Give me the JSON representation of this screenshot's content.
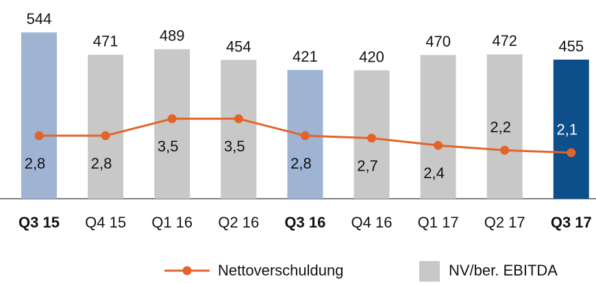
{
  "chart_data": {
    "type": "bar",
    "categories": [
      "Q3 15",
      "Q4 15",
      "Q1 16",
      "Q2 16",
      "Q3 16",
      "Q4 16",
      "Q1 17",
      "Q2 17",
      "Q3 17"
    ],
    "ylim": [
      0,
      650
    ],
    "y2lim": [
      0.2,
      8.4
    ],
    "series": [
      {
        "name": "NV/ber. EBITDA",
        "type": "bar",
        "color": "#c8c8c8",
        "colors": [
          "#9fb3d3",
          "#c8c8c8",
          "#c8c8c8",
          "#c8c8c8",
          "#9fb3d3",
          "#c8c8c8",
          "#c8c8c8",
          "#c8c8c8",
          "#0d4f8b"
        ],
        "values": [
          544,
          471,
          489,
          454,
          421,
          420,
          470,
          472,
          455
        ]
      },
      {
        "name": "Nettoverschuldung",
        "type": "line",
        "axis": "y2",
        "color": "#e2642a",
        "values": [
          2.8,
          2.8,
          3.5,
          3.5,
          2.8,
          2.7,
          2.4,
          2.2,
          2.1
        ],
        "value_labels": [
          "2,8",
          "2,8",
          "3,5",
          "3,5",
          "2,8",
          "2,7",
          "2,4",
          "2,2",
          "2,1"
        ]
      }
    ],
    "legend": "bottom"
  }
}
